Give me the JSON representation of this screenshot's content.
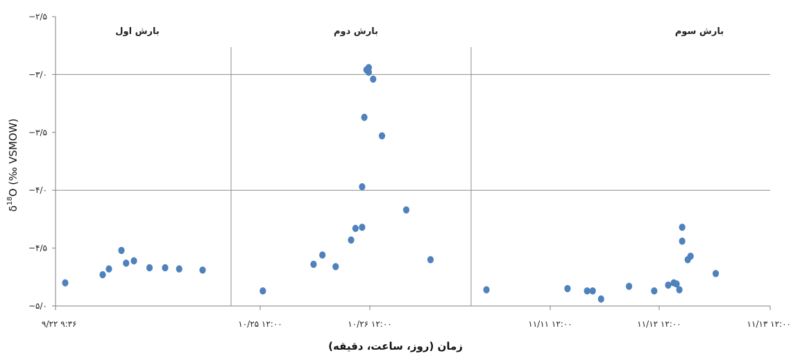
{
  "chart_data": {
    "type": "scatter",
    "title": "",
    "ylabel": {
      "main": "δ",
      "sup": "18",
      "rest": "O (‰ VSMOW)"
    },
    "xlabel": "زمان (روز، ساعت، دقیقه)",
    "ylim": [
      -5.0,
      -2.5
    ],
    "yticks": [
      {
        "value": -2.5,
        "label": "−۲/۵"
      },
      {
        "value": -3.0,
        "label": "−۳/۰"
      },
      {
        "value": -3.5,
        "label": "−۳/۵"
      },
      {
        "value": -4.0,
        "label": "−۴/۰"
      },
      {
        "value": -4.5,
        "label": "−۴/۵"
      },
      {
        "value": -5.0,
        "label": "−۵/۰"
      }
    ],
    "gridlines_y": [
      -3.0,
      -4.0
    ],
    "segments": [
      {
        "label": "بارش اول",
        "ticks": [
          {
            "label": "۹/۲۲ ۹:۳۶"
          }
        ],
        "points": [
          {
            "x": 0.0,
            "y": -4.8
          },
          {
            "x": 0.24,
            "y": -4.73
          },
          {
            "x": 0.28,
            "y": -4.68
          },
          {
            "x": 0.36,
            "y": -4.52
          },
          {
            "x": 0.39,
            "y": -4.63
          },
          {
            "x": 0.44,
            "y": -4.61
          },
          {
            "x": 0.54,
            "y": -4.67
          },
          {
            "x": 0.64,
            "y": -4.67
          },
          {
            "x": 0.73,
            "y": -4.68
          },
          {
            "x": 0.88,
            "y": -4.69
          }
        ]
      },
      {
        "label": "بارش دوم",
        "ticks": [
          {
            "label": "۱۰/۲۵ ۱۲:۰۰"
          },
          {
            "label": "۱۰/۲۶ ۱۲:۰۰"
          }
        ],
        "points": [
          {
            "x": 0.1,
            "y": -4.87
          },
          {
            "x": 0.33,
            "y": -4.64
          },
          {
            "x": 0.37,
            "y": -4.56
          },
          {
            "x": 0.43,
            "y": -4.66
          },
          {
            "x": 0.5,
            "y": -4.43
          },
          {
            "x": 0.52,
            "y": -4.33
          },
          {
            "x": 0.55,
            "y": -4.32
          },
          {
            "x": 0.55,
            "y": -3.97
          },
          {
            "x": 0.56,
            "y": -3.37
          },
          {
            "x": 0.57,
            "y": -2.96
          },
          {
            "x": 0.58,
            "y": -2.98
          },
          {
            "x": 0.58,
            "y": -2.94
          },
          {
            "x": 0.6,
            "y": -3.04
          },
          {
            "x": 0.64,
            "y": -3.53
          },
          {
            "x": 0.75,
            "y": -4.17
          },
          {
            "x": 0.86,
            "y": -4.6
          }
        ]
      },
      {
        "label": "بارش سوم",
        "ticks": [
          {
            "label": "۱۱/۱۱ ۱۲:۰۰"
          },
          {
            "label": "۱۱/۱۲ ۱۲:۰۰"
          },
          {
            "label": "۱۱/۱۳ ۱۲:۰۰"
          }
        ],
        "points": [
          {
            "x": 0.02,
            "y": -4.86
          },
          {
            "x": 0.31,
            "y": -4.85
          },
          {
            "x": 0.38,
            "y": -4.87
          },
          {
            "x": 0.4,
            "y": -4.87
          },
          {
            "x": 0.43,
            "y": -4.94
          },
          {
            "x": 0.53,
            "y": -4.83
          },
          {
            "x": 0.62,
            "y": -4.87
          },
          {
            "x": 0.67,
            "y": -4.82
          },
          {
            "x": 0.69,
            "y": -4.8
          },
          {
            "x": 0.7,
            "y": -4.81
          },
          {
            "x": 0.71,
            "y": -4.86
          },
          {
            "x": 0.72,
            "y": -4.32
          },
          {
            "x": 0.72,
            "y": -4.44
          },
          {
            "x": 0.74,
            "y": -4.6
          },
          {
            "x": 0.75,
            "y": -4.57
          },
          {
            "x": 0.84,
            "y": -4.72
          }
        ]
      }
    ],
    "grid": true,
    "legend": "none",
    "colors": {
      "marker": "#4F81BD",
      "grid": "#8c8c8c",
      "axis": "#7f7f7f"
    }
  }
}
